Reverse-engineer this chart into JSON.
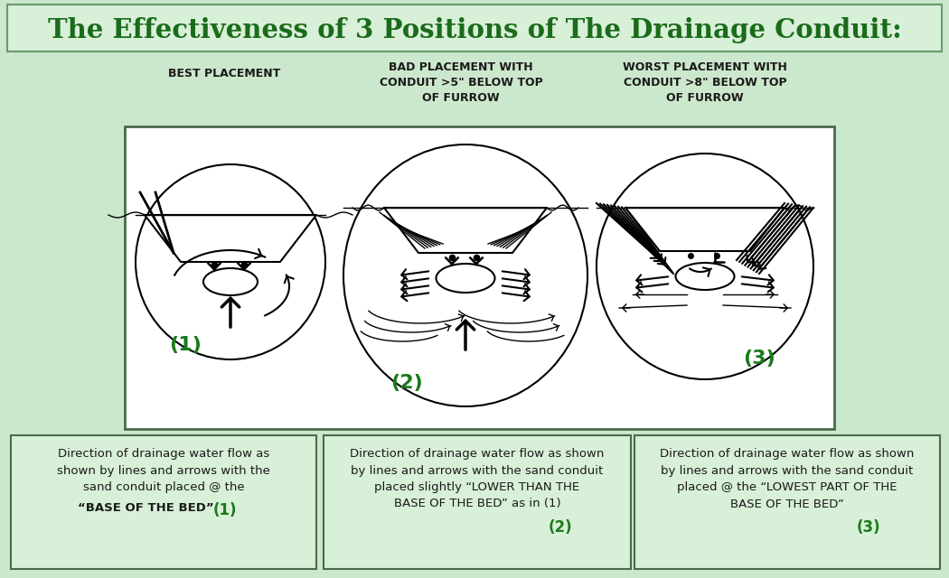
{
  "title": "The Effectiveness of 3 Positions of The Drainage Conduit:",
  "title_color": "#1a6b1a",
  "title_fontsize": 21,
  "bg_color": "#cce8cc",
  "header_bg": "#d8efd8",
  "header_border": "#6a9a6a",
  "diagram_bg": "#ffffff",
  "diagram_border": "#4a6a4a",
  "col1_header": "BEST PLACEMENT",
  "col2_header": "BAD PLACEMENT WITH\nCONDUIT >5\" BELOW TOP\nOF FURROW",
  "col3_header": "WORST PLACEMENT WITH\nCONDUIT >8\" BELOW TOP\nOF FURROW",
  "label1": "(1)",
  "label2": "(2)",
  "label3": "(3)",
  "green_color": "#1a7a1a",
  "text_color": "#1a1a1a",
  "box_bg": "#d8efd8",
  "box_border": "#4a6a4a"
}
